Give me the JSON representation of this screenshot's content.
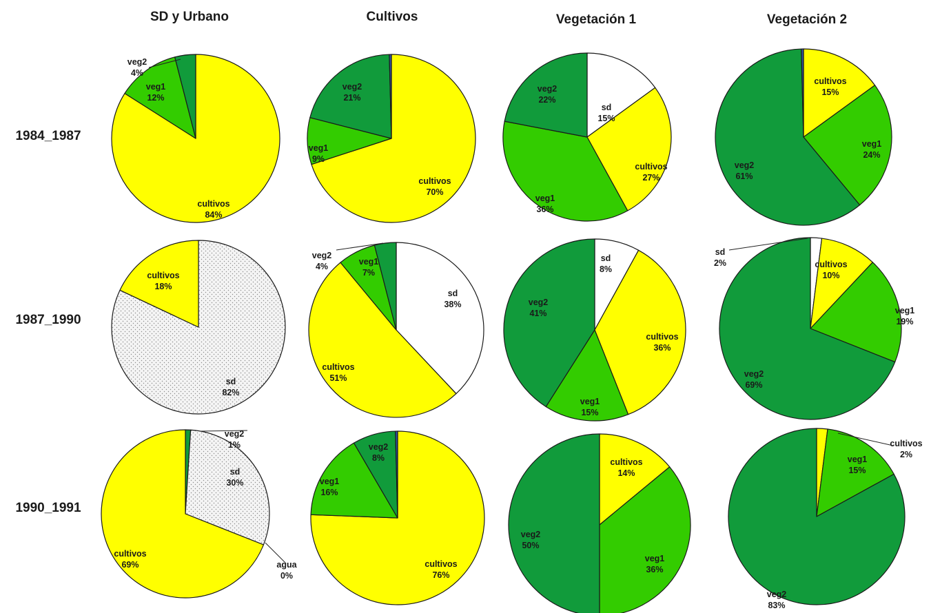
{
  "colors": {
    "cultivos": "#ffff00",
    "veg1": "#33cc00",
    "veg2": "#119b3b",
    "sd": "#ffffff",
    "agua": "#3355aa",
    "sd_dotted": "#f2f2f2"
  },
  "chart_data": {
    "type": "pie",
    "columns": [
      "SD y Urbano",
      "Cultivos",
      "Vegetación 1",
      "Vegetación 2"
    ],
    "rows": [
      "1984_1987",
      "1987_1990",
      "1990_1991"
    ],
    "pies": [
      {
        "row": "1984_1987",
        "column": "SD y Urbano",
        "slices": [
          {
            "label": "cultivos",
            "pct": "84%",
            "value": 84
          },
          {
            "label": "veg1",
            "pct": "12%",
            "value": 12
          },
          {
            "label": "veg2",
            "pct": "4%",
            "value": 4
          }
        ]
      },
      {
        "row": "1984_1987",
        "column": "Cultivos",
        "slices": [
          {
            "label": "cultivos",
            "pct": "70%",
            "value": 70
          },
          {
            "label": "veg1",
            "pct": "9%",
            "value": 9
          },
          {
            "label": "veg2",
            "pct": "21%",
            "value": 20.6
          },
          {
            "label": "",
            "pct": "",
            "value": 0.4,
            "color": "agua"
          }
        ]
      },
      {
        "row": "1984_1987",
        "column": "Vegetación 1",
        "slices": [
          {
            "label": "sd",
            "pct": "15%",
            "value": 15
          },
          {
            "label": "cultivos",
            "pct": "27%",
            "value": 27
          },
          {
            "label": "veg1",
            "pct": "36%",
            "value": 36
          },
          {
            "label": "veg2",
            "pct": "22%",
            "value": 22
          }
        ]
      },
      {
        "row": "1984_1987",
        "column": "Vegetación 2",
        "slices": [
          {
            "label": "cultivos",
            "pct": "15%",
            "value": 15
          },
          {
            "label": "veg1",
            "pct": "24%",
            "value": 24
          },
          {
            "label": "veg2",
            "pct": "61%",
            "value": 60.6
          },
          {
            "label": "",
            "pct": "",
            "value": 0.4,
            "color": "agua"
          }
        ]
      },
      {
        "row": "1987_1990",
        "column": "SD y Urbano",
        "slices": [
          {
            "label": "sd",
            "pct": "82%",
            "value": 82,
            "pattern": true
          },
          {
            "label": "cultivos",
            "pct": "18%",
            "value": 18
          }
        ]
      },
      {
        "row": "1987_1990",
        "column": "Cultivos",
        "slices": [
          {
            "label": "sd",
            "pct": "38%",
            "value": 38
          },
          {
            "label": "cultivos",
            "pct": "51%",
            "value": 51
          },
          {
            "label": "veg1",
            "pct": "7%",
            "value": 7
          },
          {
            "label": "veg2",
            "pct": "4%",
            "value": 4
          }
        ]
      },
      {
        "row": "1987_1990",
        "column": "Vegetación 1",
        "slices": [
          {
            "label": "sd",
            "pct": "8%",
            "value": 8
          },
          {
            "label": "cultivos",
            "pct": "36%",
            "value": 36
          },
          {
            "label": "veg1",
            "pct": "15%",
            "value": 15
          },
          {
            "label": "veg2",
            "pct": "41%",
            "value": 41
          }
        ]
      },
      {
        "row": "1987_1990",
        "column": "Vegetación 2",
        "slices": [
          {
            "label": "sd",
            "pct": "2%",
            "value": 2
          },
          {
            "label": "cultivos",
            "pct": "10%",
            "value": 10
          },
          {
            "label": "veg1",
            "pct": "19%",
            "value": 19
          },
          {
            "label": "veg2",
            "pct": "69%",
            "value": 69
          }
        ]
      },
      {
        "row": "1990_1991",
        "column": "SD y Urbano",
        "slices": [
          {
            "label": "veg2",
            "pct": "1%",
            "value": 1
          },
          {
            "label": "sd",
            "pct": "30%",
            "value": 30,
            "pattern": true
          },
          {
            "label": "agua",
            "pct": "0%",
            "value": 0
          },
          {
            "label": "cultivos",
            "pct": "69%",
            "value": 69
          }
        ]
      },
      {
        "row": "1990_1991",
        "column": "Cultivos",
        "slices": [
          {
            "label": "cultivos",
            "pct": "76%",
            "value": 75.6
          },
          {
            "label": "veg1",
            "pct": "16%",
            "value": 16
          },
          {
            "label": "veg2",
            "pct": "8%",
            "value": 8
          },
          {
            "label": "",
            "pct": "",
            "value": 0.4,
            "color": "agua"
          }
        ]
      },
      {
        "row": "1990_1991",
        "column": "Vegetación 1",
        "slices": [
          {
            "label": "cultivos",
            "pct": "14%",
            "value": 14
          },
          {
            "label": "veg1",
            "pct": "36%",
            "value": 36
          },
          {
            "label": "veg2",
            "pct": "50%",
            "value": 50
          }
        ]
      },
      {
        "row": "1990_1991",
        "column": "Vegetación 2",
        "slices": [
          {
            "label": "cultivos",
            "pct": "2%",
            "value": 2
          },
          {
            "label": "veg1",
            "pct": "15%",
            "value": 15
          },
          {
            "label": "veg2",
            "pct": "83%",
            "value": 83
          }
        ]
      }
    ]
  }
}
